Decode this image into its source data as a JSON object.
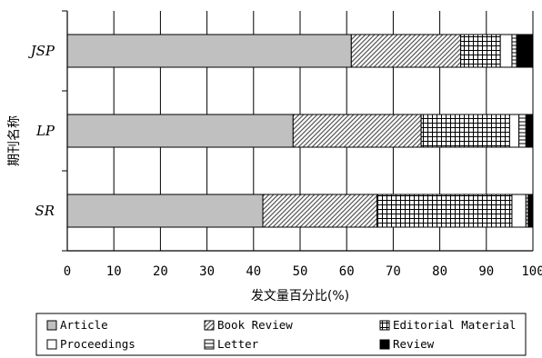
{
  "chart_data": {
    "type": "bar",
    "orientation": "horizontal",
    "stacked": true,
    "categories": [
      "JSP",
      "LP",
      "SR"
    ],
    "xlabel": "发文量百分比(%)",
    "ylabel": "期刊名称",
    "xlim": [
      0,
      100
    ],
    "xticks": [
      "0",
      "10",
      "20",
      "30",
      "40",
      "50",
      "60",
      "70",
      "80",
      "90",
      "100"
    ],
    "grid": "vertical",
    "legend_position": "bottom",
    "series": [
      {
        "name": "Article",
        "pattern": "solid-gray",
        "color": "#c0c0c0",
        "values": [
          61,
          48.5,
          42
        ]
      },
      {
        "name": "Book Review",
        "pattern": "diagonal-hatch",
        "color": "#ffffff",
        "values": [
          23.5,
          27.5,
          24.5
        ]
      },
      {
        "name": "Editorial Material",
        "pattern": "grid",
        "color": "#ffffff",
        "values": [
          8.5,
          19,
          29
        ]
      },
      {
        "name": "Proceedings",
        "pattern": "white",
        "color": "#ffffff",
        "values": [
          2.5,
          2,
          3
        ]
      },
      {
        "name": "Letter",
        "pattern": "horizontal-lines",
        "color": "#ffffff",
        "values": [
          1,
          1.5,
          0.5
        ]
      },
      {
        "name": "Review",
        "pattern": "solid-black",
        "color": "#000000",
        "values": [
          3.5,
          1.5,
          1
        ]
      }
    ]
  }
}
